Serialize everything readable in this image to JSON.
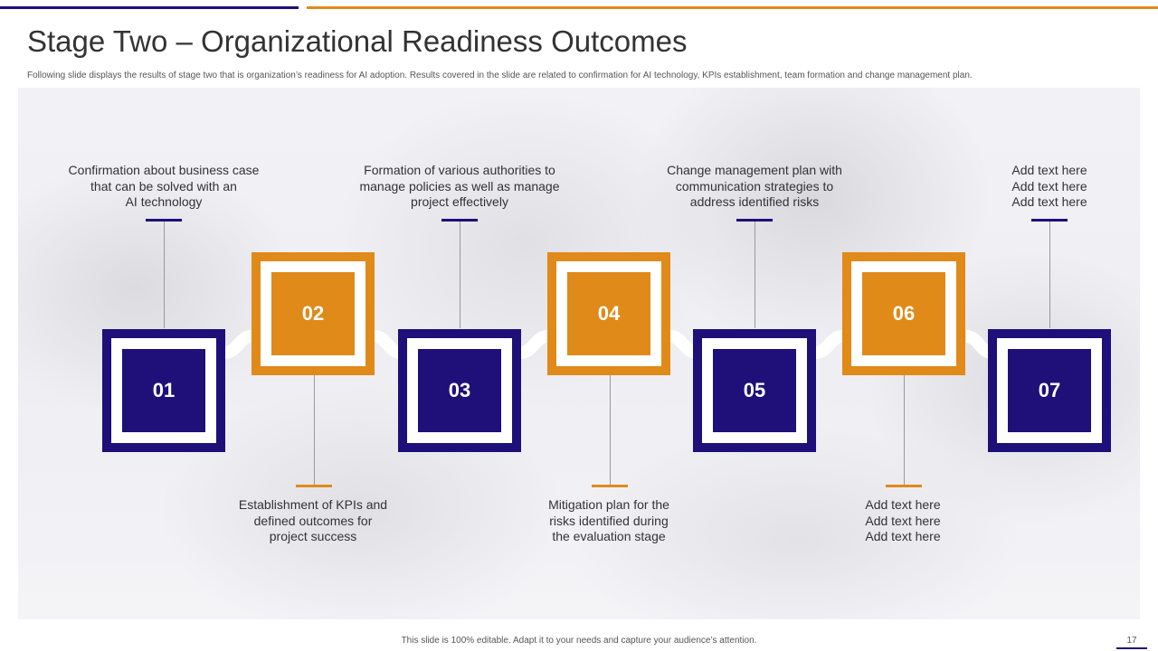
{
  "header": {
    "title": "Stage Two – Organizational Readiness Outcomes",
    "subtitle": "Following slide displays the results of stage two that is organization’s readiness for AI adoption. Results covered in the slide are related to confirmation for AI technology, KPIs  establishment, team formation and change management  plan."
  },
  "stages": [
    {
      "number": "01",
      "label": "Confirmation about business case\nthat can be solved with an\nAI technology"
    },
    {
      "number": "02",
      "label": "Establishment of KPIs and\ndefined outcomes for\nproject success"
    },
    {
      "number": "03",
      "label": "Formation of various authorities to\nmanage policies as well as manage\nproject effectively"
    },
    {
      "number": "04",
      "label": "Mitigation  plan for the\nrisks identified  during\nthe evaluation stage"
    },
    {
      "number": "05",
      "label": "Change management plan with\ncommunication strategies to\naddress identified  risks"
    },
    {
      "number": "06",
      "label": "Add text here\nAdd text here\nAdd text here"
    },
    {
      "number": "07",
      "label": "Add text here\nAdd text here\nAdd text here"
    }
  ],
  "colors": {
    "purple": "#1f0f78",
    "orange": "#e08a19"
  },
  "footer": {
    "note": "This slide is 100% editable.  Adapt it to your needs and capture your audience’s attention.",
    "page_number": "17"
  }
}
